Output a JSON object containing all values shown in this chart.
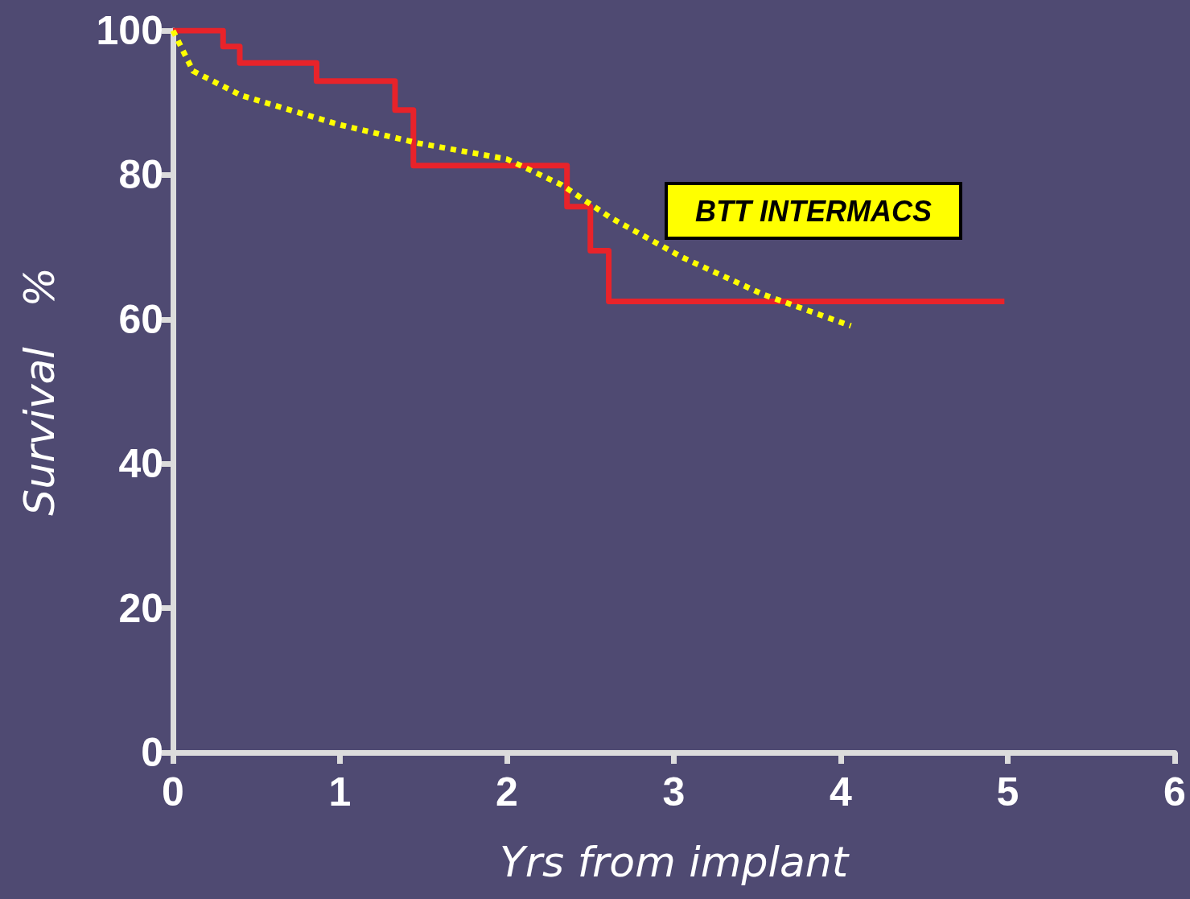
{
  "chart_data": {
    "type": "line",
    "xlabel": "Yrs from implant",
    "ylabel": "Survival   %",
    "xlim": [
      0,
      6
    ],
    "xticks": [
      0,
      1,
      2,
      3,
      4,
      5,
      6
    ],
    "ylim": [
      0,
      100
    ],
    "yticks": [
      0,
      20,
      40,
      60,
      80,
      100
    ],
    "grid": false,
    "marker": "none",
    "annotations": [
      "BTT INTERMACS"
    ],
    "series": [
      {
        "type": "step",
        "color": "#e8232a",
        "line_style": "solid",
        "x": [
          0,
          0.3,
          0.4,
          0.86,
          1.33,
          1.44,
          2.36,
          2.5,
          2.61,
          4.98
        ],
        "values": [
          100,
          97.8,
          95.5,
          93,
          89,
          81.3,
          75.6,
          69.5,
          62.5,
          62.5
        ]
      },
      {
        "color": "#ffff00",
        "line_style": "dotted",
        "x": [
          0,
          0.12,
          0.41,
          0.99,
          1.47,
          2.0,
          2.33,
          2.62,
          3.05,
          3.53,
          3.77,
          4.06
        ],
        "values": [
          100,
          94.4,
          91,
          87,
          84.4,
          82.2,
          78.6,
          74.1,
          68.6,
          63.5,
          61.5,
          59.1
        ]
      }
    ]
  }
}
